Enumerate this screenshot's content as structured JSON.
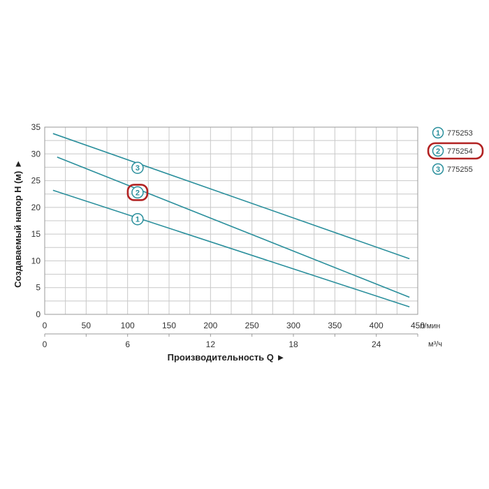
{
  "chart_data": {
    "type": "line",
    "title": "",
    "xlabel": "Производительность Q ►",
    "ylabel": "Создаваемый напор H (м) ►",
    "x_unit": "л/мин",
    "x2_unit": "м³/ч",
    "xlim": [
      0,
      450
    ],
    "ylim": [
      0,
      35
    ],
    "x_ticks": [
      0,
      50,
      100,
      150,
      200,
      250,
      300,
      350,
      400,
      450
    ],
    "x_ticks_labels": [
      "0",
      "50",
      "100",
      "150",
      "200",
      "250",
      "300",
      "350",
      "400",
      "450"
    ],
    "x2_ticks": [
      0,
      6,
      12,
      18,
      24
    ],
    "x2_ticks_labels": [
      "0",
      "6",
      "12",
      "18",
      "24"
    ],
    "y_ticks": [
      0,
      5,
      10,
      15,
      20,
      25,
      30,
      35
    ],
    "y_ticks_labels": [
      "0",
      "5",
      "10",
      "15",
      "20",
      "25",
      "30",
      "35"
    ],
    "grid": true,
    "legend_position": "right",
    "line_color": "#2a8f9c",
    "highlight_color": "#b22222",
    "highlighted_series": "2",
    "series": [
      {
        "name": "775253",
        "marker": "1",
        "x": [
          10,
          440
        ],
        "y": [
          23.2,
          1.4
        ],
        "marker_at": [
          112,
          17.8
        ]
      },
      {
        "name": "775254",
        "marker": "2",
        "x": [
          15,
          440
        ],
        "y": [
          29.4,
          3.2
        ],
        "marker_at": [
          112,
          22.8
        ]
      },
      {
        "name": "775255",
        "marker": "3",
        "x": [
          10,
          440
        ],
        "y": [
          33.8,
          10.4
        ],
        "marker_at": [
          112,
          27.4
        ]
      }
    ]
  }
}
